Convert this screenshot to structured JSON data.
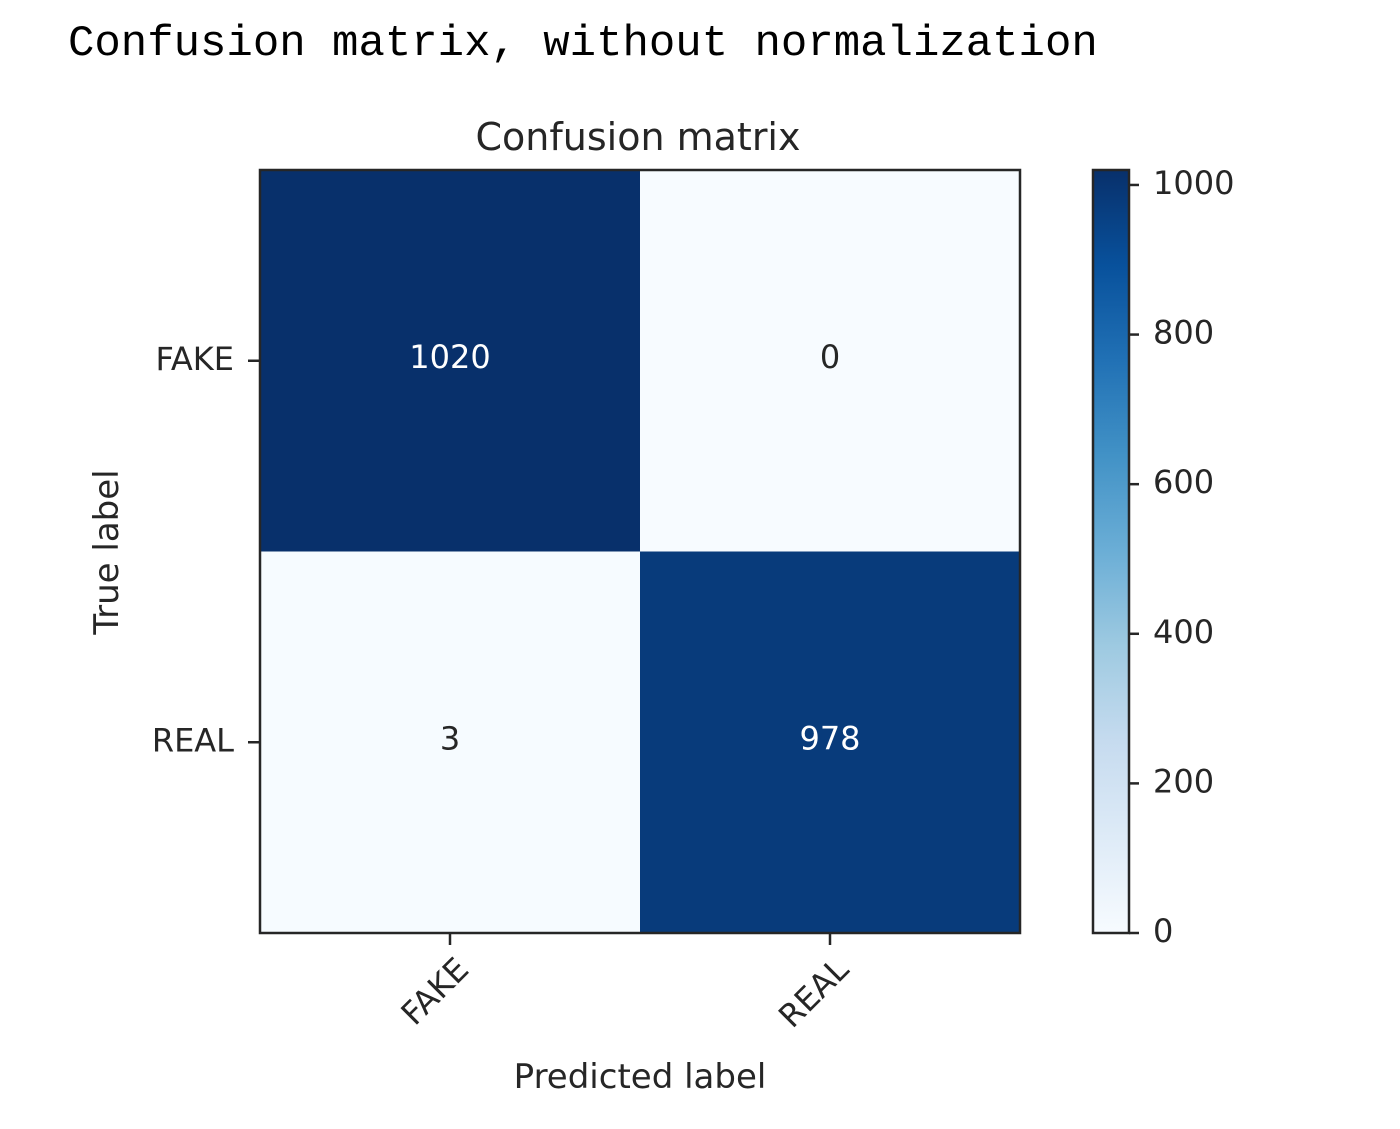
{
  "output_text": "Confusion matrix, without normalization",
  "chart_data": {
    "type": "heatmap",
    "title": "Confusion matrix",
    "xlabel": "Predicted label",
    "ylabel": "True label",
    "x_categories": [
      "FAKE",
      "REAL"
    ],
    "y_categories": [
      "FAKE",
      "REAL"
    ],
    "values": [
      [
        1020,
        0
      ],
      [
        3,
        978
      ]
    ],
    "colormap": "Blues",
    "colorbar": {
      "ticks": [
        0,
        200,
        400,
        600,
        800,
        1000
      ],
      "range": [
        0,
        1020
      ]
    },
    "colors": {
      "low": "#f7fbff",
      "high": "#08306b"
    }
  }
}
